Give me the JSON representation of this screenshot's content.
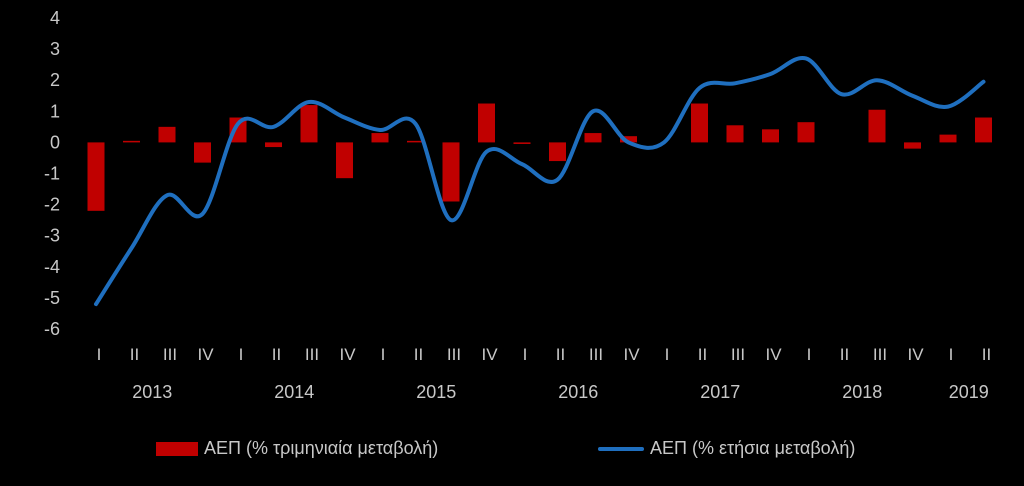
{
  "chart_data": {
    "type": "bar+line",
    "ylim": [
      -6,
      4
    ],
    "y_ticks": [
      "4",
      "3",
      "2",
      "1",
      "0",
      "-1",
      "-2",
      "-3",
      "-4",
      "-5",
      "-6"
    ],
    "quarter_labels": [
      "I",
      "II",
      "III",
      "IV",
      "I",
      "II",
      "III",
      "IV",
      "I",
      "II",
      "III",
      "IV",
      "I",
      "II",
      "III",
      "IV",
      "I",
      "II",
      "III",
      "IV",
      "I",
      "II",
      "III",
      "IV",
      "I",
      "II"
    ],
    "years": [
      {
        "label": "2013",
        "center_index": 1.5
      },
      {
        "label": "2014",
        "center_index": 5.5
      },
      {
        "label": "2015",
        "center_index": 9.5
      },
      {
        "label": "2016",
        "center_index": 13.5
      },
      {
        "label": "2017",
        "center_index": 17.5
      },
      {
        "label": "2018",
        "center_index": 21.5
      },
      {
        "label": "2019",
        "center_index": 24.5
      }
    ],
    "series": [
      {
        "name": "ΑΕΠ (% τριμηνιαία μεταβολή)",
        "kind": "bar",
        "color": "#c00000",
        "values": [
          -2.2,
          0.05,
          0.5,
          -0.65,
          0.8,
          -0.15,
          1.2,
          -1.15,
          0.3,
          0.05,
          -1.9,
          1.25,
          -0.05,
          -0.6,
          0.3,
          0.2,
          0.0,
          1.25,
          0.55,
          0.42,
          0.65,
          0.0,
          1.05,
          -0.2,
          0.25,
          0.8
        ]
      },
      {
        "name": "ΑΕΠ (% ετήσια μεταβολή)",
        "kind": "line",
        "color": "#1f6fbf",
        "values": [
          -5.2,
          -3.4,
          -1.7,
          -2.3,
          0.6,
          0.5,
          1.3,
          0.8,
          0.4,
          0.6,
          -2.5,
          -0.3,
          -0.7,
          -1.2,
          1.0,
          0.0,
          0.0,
          1.75,
          1.9,
          2.2,
          2.7,
          1.55,
          2.0,
          1.5,
          1.15,
          1.95
        ]
      }
    ]
  },
  "legend": {
    "bar_label": "ΑΕΠ (% τριμηνιαία μεταβολή)",
    "line_label": "ΑΕΠ (% ετήσια μεταβολή)"
  }
}
